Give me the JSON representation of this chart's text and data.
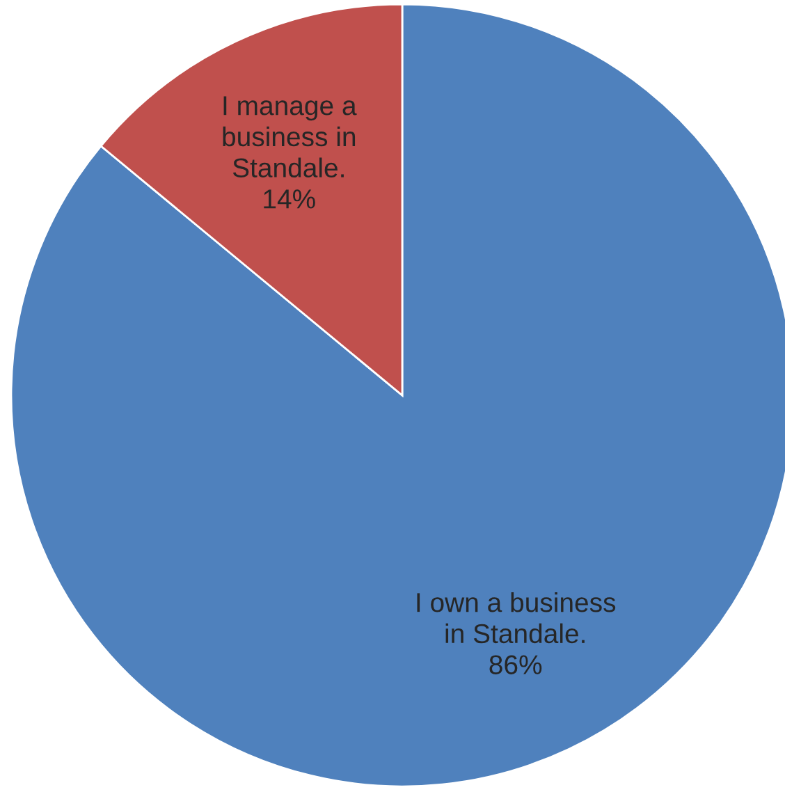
{
  "chart_data": {
    "type": "pie",
    "categories": [
      "I own a business\nin Standale.",
      "I manage a\nbusiness in\nStandale."
    ],
    "values": [
      86,
      14
    ],
    "colors": [
      "#4f81bd",
      "#c0504d"
    ],
    "value_labels": [
      "86%",
      "14%"
    ]
  }
}
